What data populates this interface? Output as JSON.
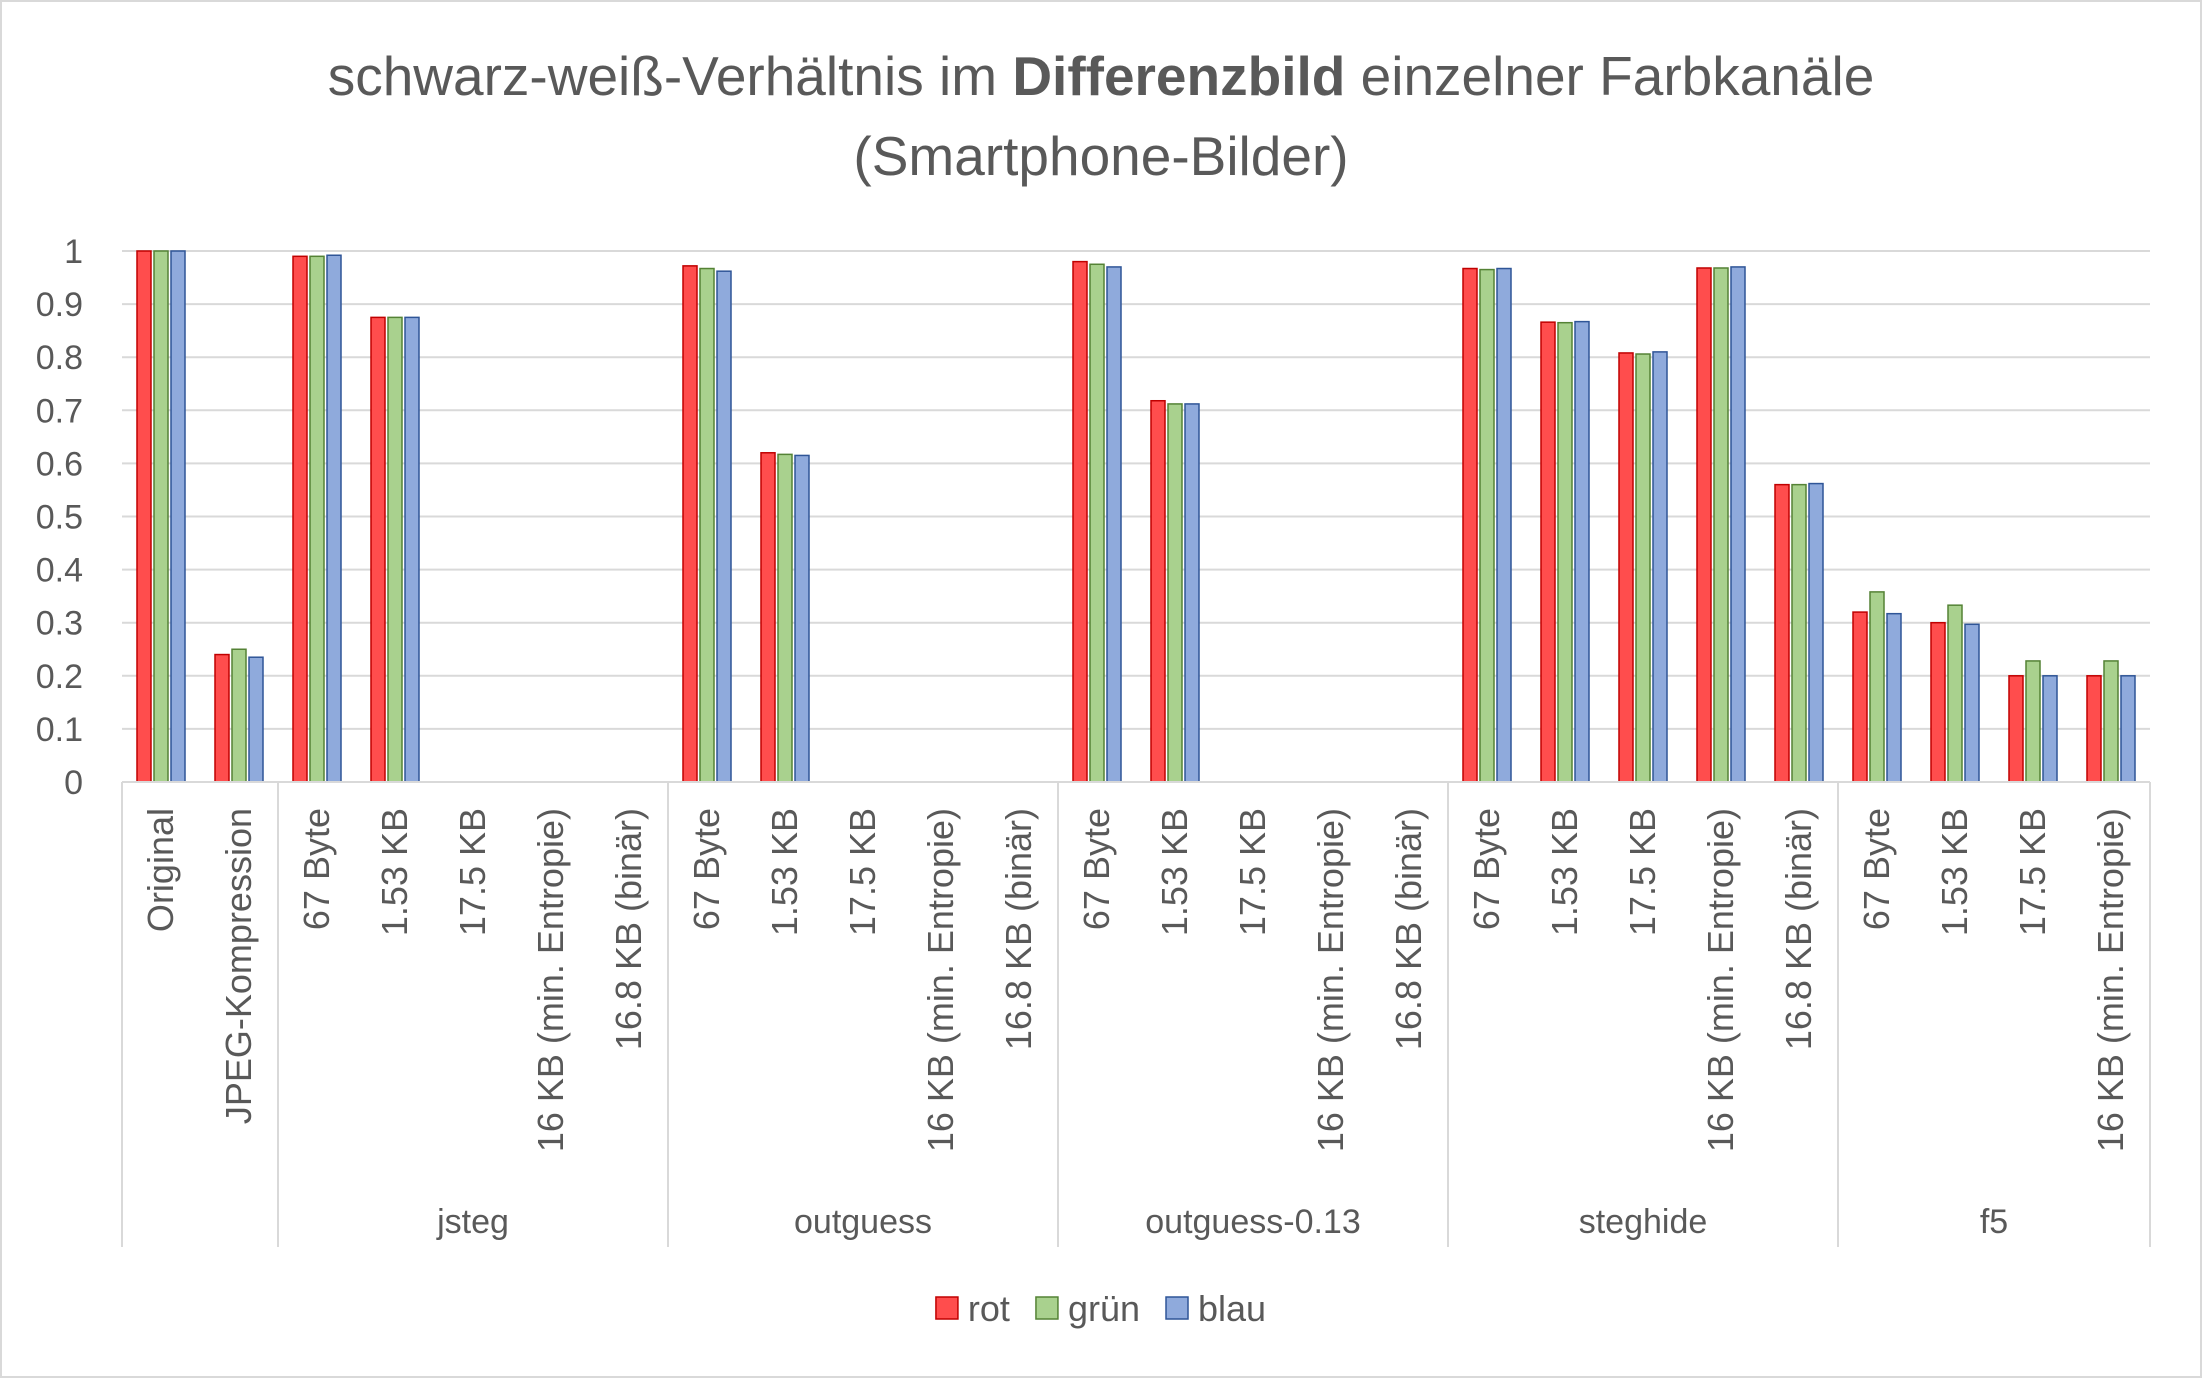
{
  "chart_data": {
    "type": "bar",
    "title": {
      "line1_before": "schwarz-weiß-Verhältnis im ",
      "line1_bold": "Differenzbild",
      "line1_after": " einzelner Farbkanäle",
      "line2": "(Smartphone-Bilder)"
    },
    "xlabel": "",
    "ylabel": "",
    "ylim": [
      0,
      1
    ],
    "yticks": [
      "0",
      "0.1",
      "0.2",
      "0.3",
      "0.4",
      "0.5",
      "0.6",
      "0.7",
      "0.8",
      "0.9",
      "1"
    ],
    "grid": true,
    "legend_position": "bottom",
    "series": [
      {
        "name": "rot",
        "color": "#ff4d4d",
        "border": "#c00000"
      },
      {
        "name": "grün",
        "color": "#a9d18e",
        "border": "#548235"
      },
      {
        "name": "blau",
        "color": "#8faadc",
        "border": "#2f5597"
      }
    ],
    "groups": [
      {
        "name": "",
        "categories": [
          {
            "label": "Original",
            "values": [
              1.0,
              1.0,
              1.0
            ]
          },
          {
            "label": "JPEG-Kompression",
            "values": [
              0.24,
              0.25,
              0.235
            ]
          }
        ]
      },
      {
        "name": "jsteg",
        "categories": [
          {
            "label": "67 Byte",
            "values": [
              0.99,
              0.99,
              0.992
            ]
          },
          {
            "label": "1.53 KB",
            "values": [
              0.875,
              0.875,
              0.875
            ]
          },
          {
            "label": "17.5 KB",
            "values": [
              null,
              null,
              null
            ]
          },
          {
            "label": "16 KB (min. Entropie)",
            "values": [
              null,
              null,
              null
            ]
          },
          {
            "label": "16.8 KB (binär)",
            "values": [
              null,
              null,
              null
            ]
          }
        ]
      },
      {
        "name": "outguess",
        "categories": [
          {
            "label": "67 Byte",
            "values": [
              0.972,
              0.967,
              0.962
            ]
          },
          {
            "label": "1.53 KB",
            "values": [
              0.62,
              0.617,
              0.615
            ]
          },
          {
            "label": "17.5 KB",
            "values": [
              null,
              null,
              null
            ]
          },
          {
            "label": "16 KB (min. Entropie)",
            "values": [
              null,
              null,
              null
            ]
          },
          {
            "label": "16.8 KB (binär)",
            "values": [
              null,
              null,
              null
            ]
          }
        ]
      },
      {
        "name": "outguess-0.13",
        "categories": [
          {
            "label": "67 Byte",
            "values": [
              0.98,
              0.975,
              0.97
            ]
          },
          {
            "label": "1.53 KB",
            "values": [
              0.718,
              0.712,
              0.712
            ]
          },
          {
            "label": "17.5 KB",
            "values": [
              null,
              null,
              null
            ]
          },
          {
            "label": "16 KB (min. Entropie)",
            "values": [
              null,
              null,
              null
            ]
          },
          {
            "label": "16.8 KB (binär)",
            "values": [
              null,
              null,
              null
            ]
          }
        ]
      },
      {
        "name": "steghide",
        "categories": [
          {
            "label": "67 Byte",
            "values": [
              0.967,
              0.965,
              0.967
            ]
          },
          {
            "label": "1.53 KB",
            "values": [
              0.866,
              0.865,
              0.867
            ]
          },
          {
            "label": "17.5 KB",
            "values": [
              0.808,
              0.806,
              0.81
            ]
          },
          {
            "label": "16 KB (min. Entropie)",
            "values": [
              0.968,
              0.968,
              0.97
            ]
          },
          {
            "label": "16.8 KB (binär)",
            "values": [
              0.56,
              0.56,
              0.562
            ]
          }
        ]
      },
      {
        "name": "f5",
        "categories": [
          {
            "label": "67 Byte",
            "values": [
              0.32,
              0.358,
              0.317
            ]
          },
          {
            "label": "1.53 KB",
            "values": [
              0.3,
              0.333,
              0.297
            ]
          },
          {
            "label": "17.5 KB",
            "values": [
              0.2,
              0.228,
              0.2
            ]
          },
          {
            "label": "16 KB (min. Entropie)",
            "values": [
              0.2,
              0.228,
              0.2
            ]
          }
        ]
      }
    ]
  }
}
